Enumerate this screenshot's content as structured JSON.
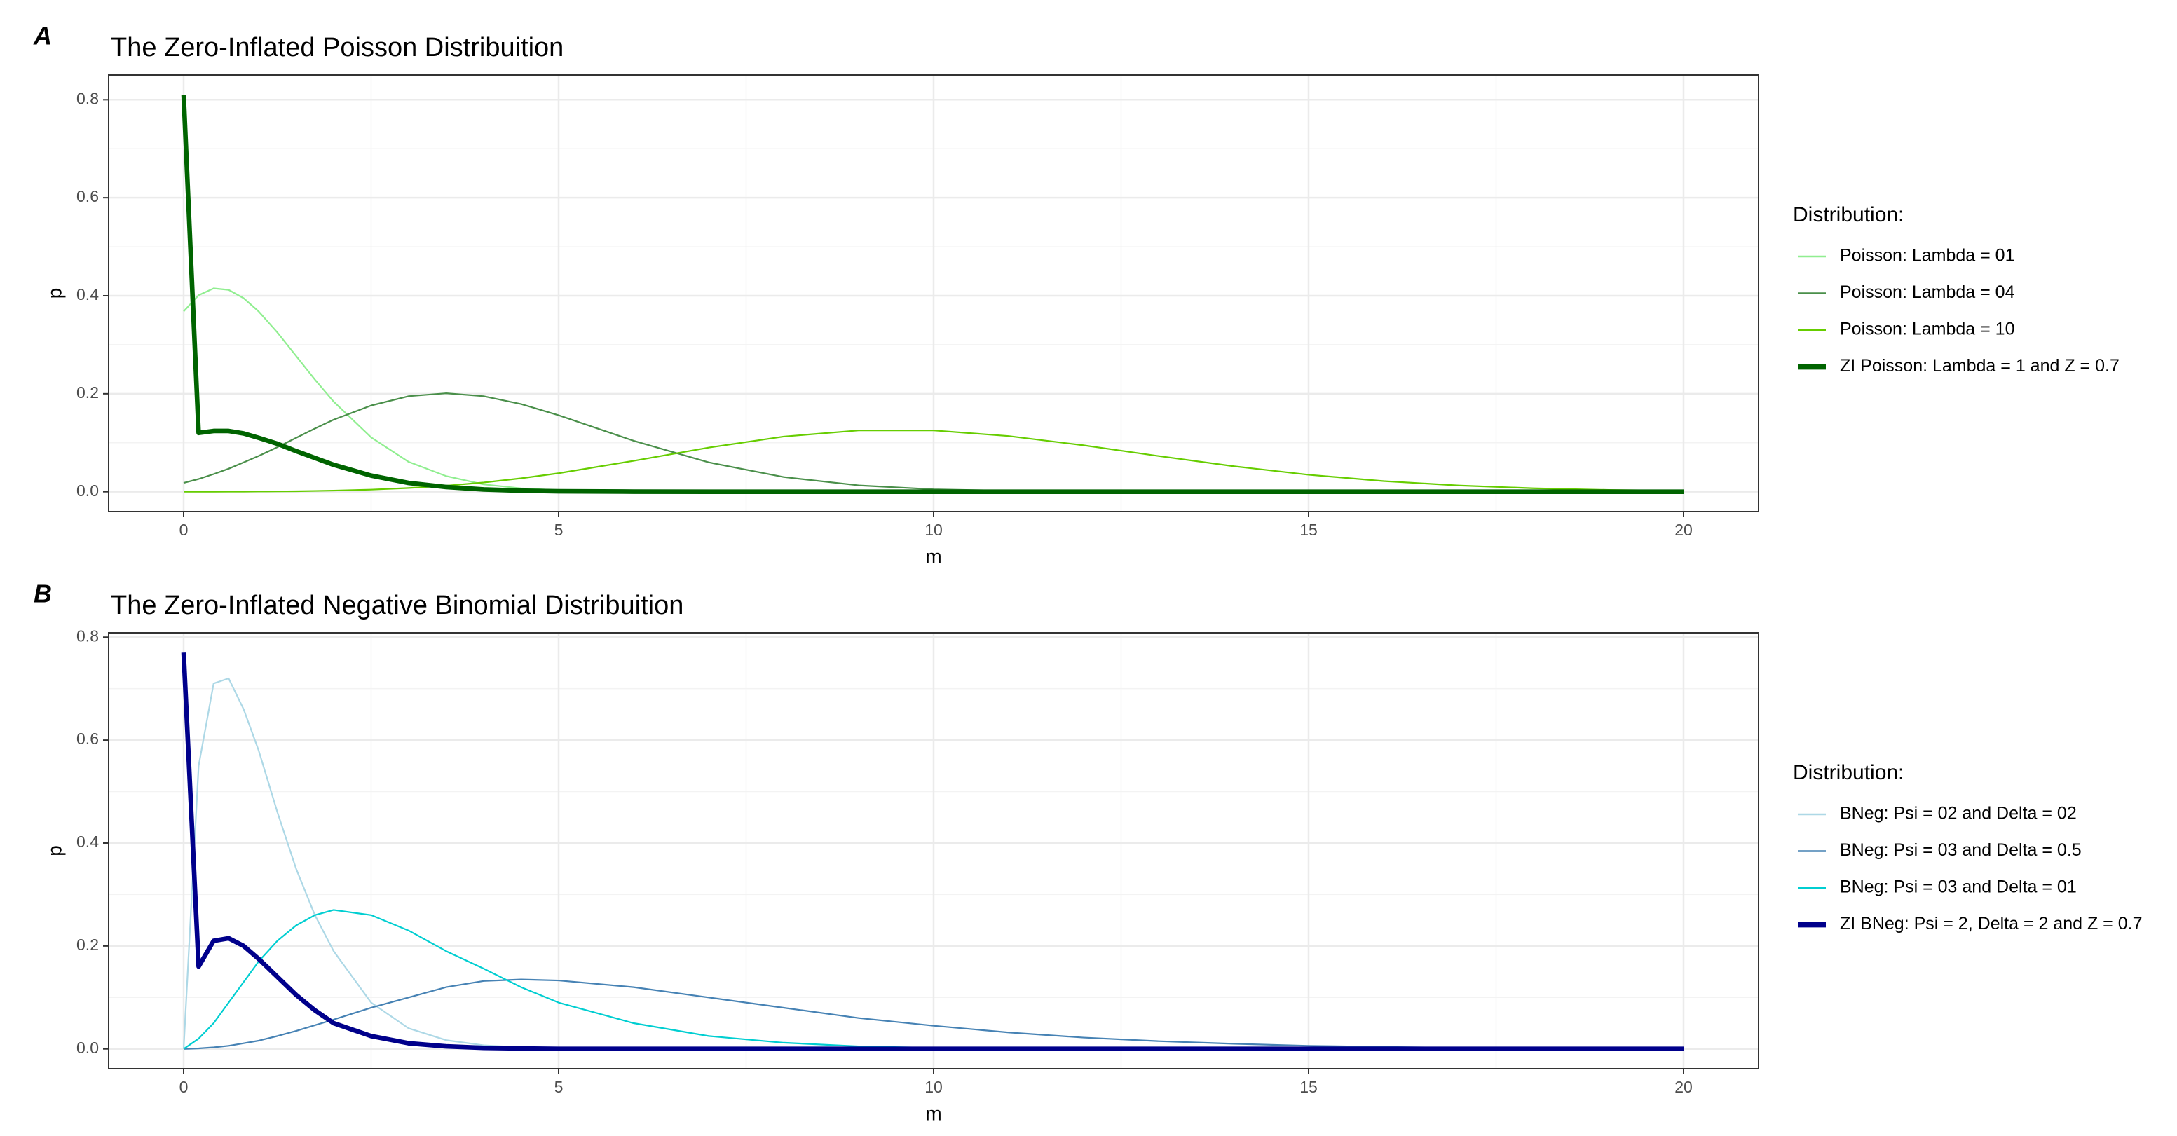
{
  "chart_data": [
    {
      "type": "line",
      "panel_label": "A",
      "title": "The Zero-Inflated Poisson Distribuition",
      "x_label": "m",
      "y_label": "p",
      "legend_title": "Distribution:",
      "legend_position": "right",
      "grid": true,
      "xlim": [
        -1,
        21
      ],
      "xticks": [
        0,
        5,
        10,
        15,
        20
      ],
      "x_minor_ticks": [
        2.5,
        7.5,
        12.5,
        17.5
      ],
      "ylim": [
        -0.0405,
        0.8505
      ],
      "yticks": [
        {
          "value": 0,
          "label": "0.0"
        },
        0.2,
        0.4,
        0.6,
        0.8
      ],
      "y_minor_ticks": [
        0.1,
        0.3,
        0.5,
        0.7
      ],
      "x": [
        0,
        0.2,
        0.4,
        0.6,
        0.8,
        1,
        1.25,
        1.5,
        1.75,
        2,
        2.5,
        3,
        3.5,
        4,
        4.5,
        5,
        6,
        7,
        8,
        9,
        10,
        11,
        12,
        13,
        14,
        15,
        16,
        17,
        18,
        19,
        20
      ],
      "series": [
        {
          "name": "Poisson: Lambda = 01",
          "color": "#90ee90",
          "line_width": 1,
          "values": [
            0.368,
            0.401,
            0.415,
            0.412,
            0.395,
            0.368,
            0.325,
            0.277,
            0.229,
            0.184,
            0.111,
            0.061,
            0.032,
            0.015,
            0.007,
            0.003,
            0.0005,
            0,
            0,
            0,
            0,
            0,
            0,
            0,
            0,
            0,
            0,
            0,
            0,
            0,
            0
          ]
        },
        {
          "name": "Poisson: Lambda = 04",
          "color": "#4a8f4a",
          "line_width": 1,
          "values": [
            0.018,
            0.026,
            0.036,
            0.047,
            0.06,
            0.073,
            0.091,
            0.11,
            0.129,
            0.147,
            0.176,
            0.195,
            0.201,
            0.195,
            0.179,
            0.156,
            0.104,
            0.06,
            0.03,
            0.013,
            0.005,
            0.002,
            0.0006,
            0.0002,
            0,
            0,
            0,
            0,
            0,
            0,
            0
          ]
        },
        {
          "name": "Poisson: Lambda = 10",
          "color": "#66cd00",
          "line_width": 1,
          "values": [
            5e-05,
            0.0001,
            0.0001,
            0.0002,
            0.0003,
            0.0005,
            0.0007,
            0.001,
            0.0016,
            0.0023,
            0.0043,
            0.0076,
            0.0123,
            0.0189,
            0.0274,
            0.0378,
            0.0631,
            0.0901,
            0.1126,
            0.1251,
            0.1251,
            0.1137,
            0.0948,
            0.0729,
            0.0521,
            0.0347,
            0.0217,
            0.0128,
            0.0071,
            0.0037,
            0.0019
          ]
        },
        {
          "name": "ZI Poisson: Lambda = 1 and Z = 0.7",
          "color": "#006400",
          "line_width": 3,
          "values": [
            0.81,
            0.12,
            0.124,
            0.124,
            0.119,
            0.11,
            0.098,
            0.083,
            0.069,
            0.055,
            0.033,
            0.018,
            0.0096,
            0.0046,
            0.0021,
            0.0009,
            0.0002,
            0,
            0,
            0,
            0,
            0,
            0,
            0,
            0,
            0,
            0,
            0,
            0,
            0,
            0
          ]
        }
      ]
    },
    {
      "type": "line",
      "panel_label": "B",
      "title": "The Zero-Inflated Negative Binomial Distribuition",
      "x_label": "m",
      "y_label": "p",
      "legend_title": "Distribution:",
      "legend_position": "right",
      "grid": true,
      "xlim": [
        -1,
        21
      ],
      "xticks": [
        0,
        5,
        10,
        15,
        20
      ],
      "x_minor_ticks": [
        2.5,
        7.5,
        12.5,
        17.5
      ],
      "ylim": [
        -0.0385,
        0.8085
      ],
      "yticks": [
        {
          "value": 0,
          "label": "0.0"
        },
        0.2,
        0.4,
        0.6,
        0.8
      ],
      "y_minor_ticks": [
        0.1,
        0.3,
        0.5,
        0.7
      ],
      "x": [
        0,
        0.2,
        0.4,
        0.6,
        0.8,
        1,
        1.25,
        1.5,
        1.75,
        2,
        2.5,
        3,
        3.5,
        4,
        4.5,
        5,
        6,
        7,
        8,
        9,
        10,
        11,
        12,
        13,
        14,
        15,
        16,
        17,
        18,
        19,
        20
      ],
      "series": [
        {
          "name": "BNeg: Psi = 02 and Delta = 02",
          "color": "#add8e6",
          "line_width": 1,
          "values": [
            0,
            0.55,
            0.71,
            0.72,
            0.66,
            0.58,
            0.46,
            0.35,
            0.26,
            0.19,
            0.09,
            0.04,
            0.017,
            0.007,
            0.003,
            0.001,
            0,
            0,
            0,
            0,
            0,
            0,
            0,
            0,
            0,
            0,
            0,
            0,
            0,
            0,
            0
          ]
        },
        {
          "name": "BNeg: Psi = 03 and Delta = 0.5",
          "color": "#4682b4",
          "line_width": 1,
          "values": [
            0,
            0.001,
            0.003,
            0.006,
            0.011,
            0.016,
            0.025,
            0.035,
            0.046,
            0.057,
            0.08,
            0.1,
            0.12,
            0.132,
            0.135,
            0.133,
            0.12,
            0.1,
            0.08,
            0.06,
            0.045,
            0.032,
            0.022,
            0.015,
            0.01,
            0.006,
            0.004,
            0.002,
            0.001,
            0.001,
            0
          ]
        },
        {
          "name": "BNeg: Psi = 03 and Delta = 01",
          "color": "#00ced1",
          "line_width": 1,
          "values": [
            0,
            0.02,
            0.05,
            0.09,
            0.13,
            0.17,
            0.21,
            0.24,
            0.26,
            0.27,
            0.26,
            0.23,
            0.19,
            0.156,
            0.12,
            0.09,
            0.05,
            0.025,
            0.012,
            0.005,
            0.002,
            0.001,
            0,
            0,
            0,
            0,
            0,
            0,
            0,
            0,
            0
          ]
        },
        {
          "name": "ZI BNeg: Psi = 2, Delta = 2 and Z = 0.7",
          "color": "#00008b",
          "line_width": 3,
          "values": [
            0.77,
            0.16,
            0.21,
            0.215,
            0.2,
            0.175,
            0.14,
            0.105,
            0.075,
            0.05,
            0.025,
            0.011,
            0.005,
            0.002,
            0.001,
            0,
            0,
            0,
            0,
            0,
            0,
            0,
            0,
            0,
            0,
            0,
            0,
            0,
            0,
            0,
            0
          ]
        }
      ]
    }
  ]
}
